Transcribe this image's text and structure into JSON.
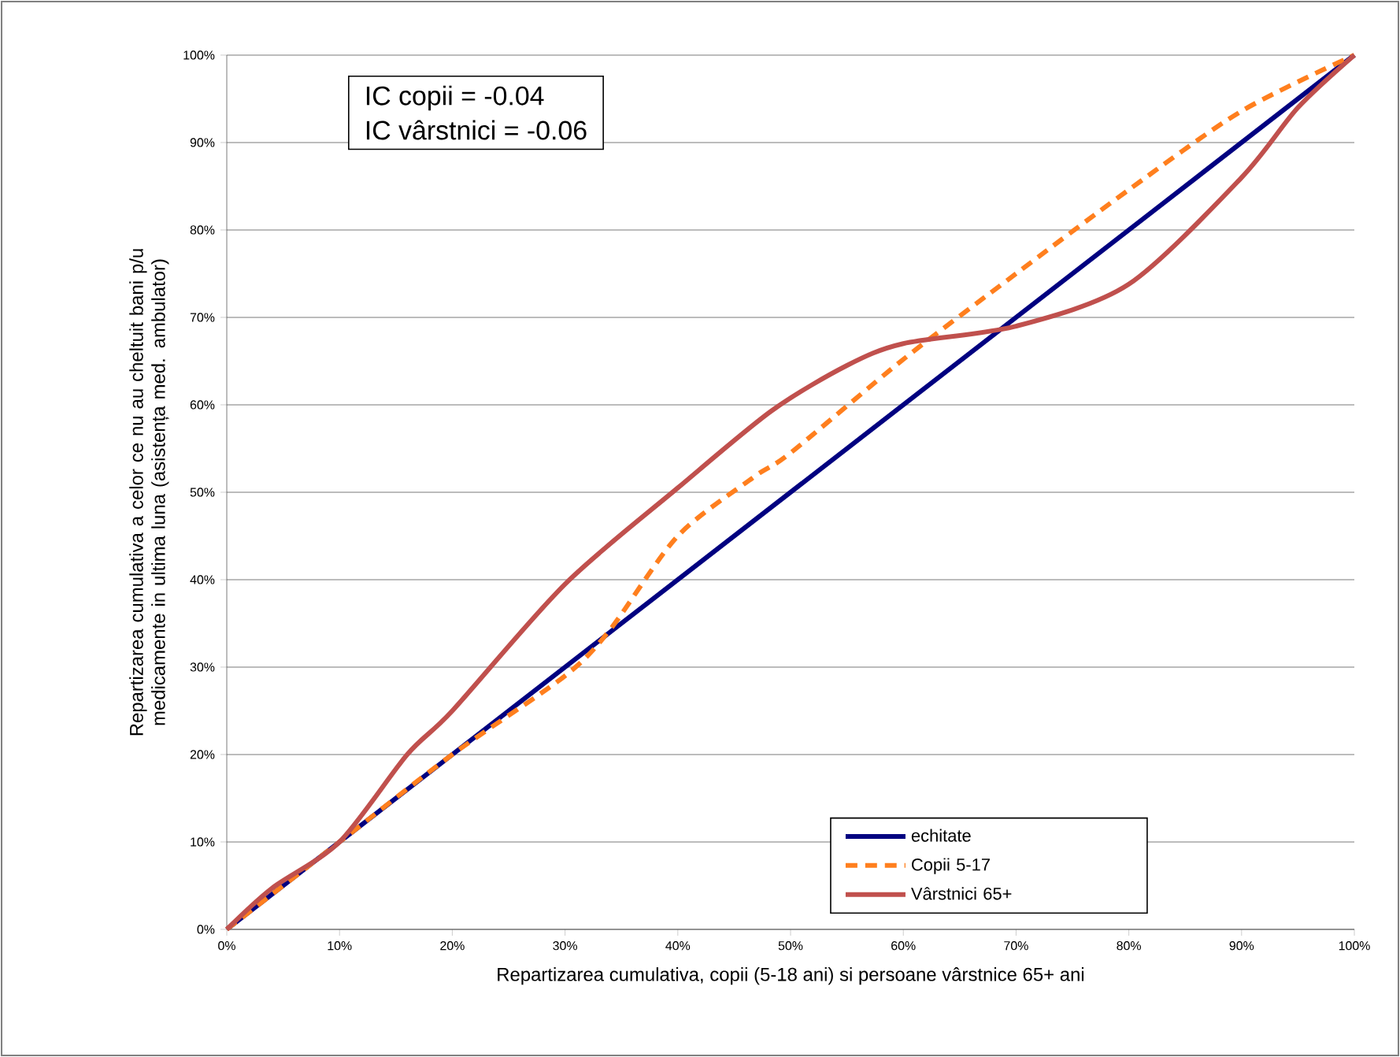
{
  "chart_data": {
    "type": "line",
    "xlabel": "Repartizarea cumulativa, copii (5-18 ani) si persoane vârstnice 65+ ani",
    "ylabel": "Repartizarea cumulativa a celor ce nu au cheltuit bani p/u medicamente in ultima luna (asistența med. ambulator)",
    "annotations": [
      "IC copii = -0.04",
      "IC vârstnici = -0.06"
    ],
    "series": [
      {
        "name": "echitate",
        "color": "#000080",
        "line_style": "solid",
        "x": [
          0,
          100
        ],
        "values": [
          0,
          100
        ]
      },
      {
        "name": "Copii 5-17",
        "color": "#ff7f1e",
        "line_style": "dashed",
        "x": [
          0,
          10,
          20,
          30,
          34,
          40,
          46.7,
          50,
          60,
          70,
          80,
          90,
          100
        ],
        "values": [
          0,
          10,
          20,
          29,
          34.3,
          45,
          51.7,
          54.5,
          65.2,
          75,
          84.6,
          93.6,
          100
        ]
      },
      {
        "name": "Vârstnici 65+",
        "color": "#c0504d",
        "line_style": "solid",
        "x": [
          0,
          4,
          10,
          16,
          20,
          30,
          40,
          48.3,
          55,
          60,
          70,
          80,
          90,
          95,
          100
        ],
        "values": [
          0,
          4.7,
          10,
          20,
          25,
          39.5,
          50.5,
          59.3,
          64.5,
          67,
          69,
          73.8,
          86,
          94,
          100
        ]
      }
    ],
    "xlim": [
      0,
      100
    ],
    "ylim": [
      0,
      100
    ],
    "xticks": [
      {
        "value": 0,
        "label": "0%"
      },
      {
        "value": 10,
        "label": "10%"
      },
      {
        "value": 20,
        "label": "20%"
      },
      {
        "value": 30,
        "label": "30%"
      },
      {
        "value": 40,
        "label": "40%"
      },
      {
        "value": 50,
        "label": "50%"
      },
      {
        "value": 60,
        "label": "60%"
      },
      {
        "value": 70,
        "label": "70%"
      },
      {
        "value": 80,
        "label": "80%"
      },
      {
        "value": 90,
        "label": "90%"
      },
      {
        "value": 100,
        "label": "100%"
      }
    ],
    "yticks": [
      {
        "value": 0,
        "label": "0%"
      },
      {
        "value": 10,
        "label": "10%"
      },
      {
        "value": 20,
        "label": "20%"
      },
      {
        "value": 30,
        "label": "30%"
      },
      {
        "value": 40,
        "label": "40%"
      },
      {
        "value": 50,
        "label": "50%"
      },
      {
        "value": 60,
        "label": "60%"
      },
      {
        "value": 70,
        "label": "70%"
      },
      {
        "value": 80,
        "label": "80%"
      },
      {
        "value": 90,
        "label": "90%"
      },
      {
        "value": 100,
        "label": "100%"
      }
    ],
    "grid": "y",
    "legend": "bottom right",
    "marker": "none"
  }
}
